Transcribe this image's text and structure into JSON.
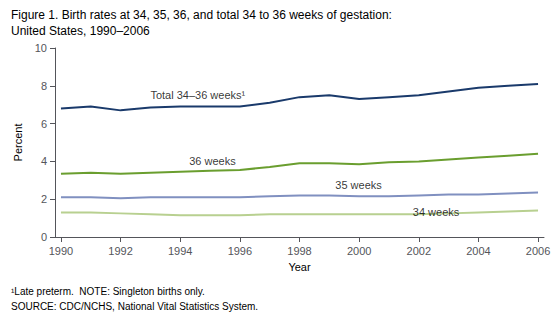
{
  "chart_data": {
    "type": "line",
    "title": "Figure 1. Birth rates at 34, 35, 36, and total 34 to 36 weeks of gestation:",
    "subtitle": "United States, 1990–2006",
    "xlabel": "Year",
    "ylabel": "Percent",
    "footnotes": [
      "¹Late preterm.  NOTE: Singleton births only.",
      "SOURCE: CDC/NCHS, National Vital Statistics System."
    ],
    "x": [
      1990,
      1991,
      1992,
      1993,
      1994,
      1995,
      1996,
      1997,
      1998,
      1999,
      2000,
      2001,
      2002,
      2003,
      2004,
      2005,
      2006
    ],
    "series": [
      {
        "color": "#1a3a6b",
        "values": [
          6.8,
          6.9,
          6.7,
          6.85,
          6.9,
          6.9,
          6.9,
          7.1,
          7.4,
          7.5,
          7.3,
          7.4,
          7.5,
          7.7,
          7.9,
          8.0,
          8.1
        ]
      },
      {
        "color": "#6a9e2f",
        "values": [
          3.35,
          3.4,
          3.35,
          3.4,
          3.45,
          3.5,
          3.55,
          3.7,
          3.9,
          3.9,
          3.85,
          3.95,
          4.0,
          4.1,
          4.2,
          4.3,
          4.4
        ]
      },
      {
        "color": "#8090c0",
        "values": [
          2.1,
          2.1,
          2.05,
          2.1,
          2.1,
          2.1,
          2.1,
          2.15,
          2.2,
          2.2,
          2.15,
          2.15,
          2.2,
          2.25,
          2.25,
          2.3,
          2.35
        ]
      },
      {
        "color": "#b8d090",
        "values": [
          1.3,
          1.3,
          1.25,
          1.2,
          1.15,
          1.15,
          1.15,
          1.2,
          1.2,
          1.2,
          1.2,
          1.2,
          1.2,
          1.25,
          1.3,
          1.35,
          1.4
        ]
      }
    ],
    "annotations": [
      {
        "text": "Total 34–36 weeks¹",
        "x": 1993.0,
        "y": 7.2
      },
      {
        "text": "36 weeks",
        "x": 1994.3,
        "y": 3.73
      },
      {
        "text": "35 weeks",
        "x": 1999.2,
        "y": 2.48
      },
      {
        "text": "34 weeks",
        "x": 2001.8,
        "y": 1.05
      }
    ],
    "xlim": [
      1989.8,
      2006.2
    ],
    "xticks": [
      1990,
      1992,
      1994,
      1996,
      1998,
      2000,
      2002,
      2004,
      2006
    ],
    "ylim": [
      0,
      10
    ],
    "yticks": [
      0,
      2,
      4,
      6,
      8,
      10
    ],
    "grid": false
  }
}
